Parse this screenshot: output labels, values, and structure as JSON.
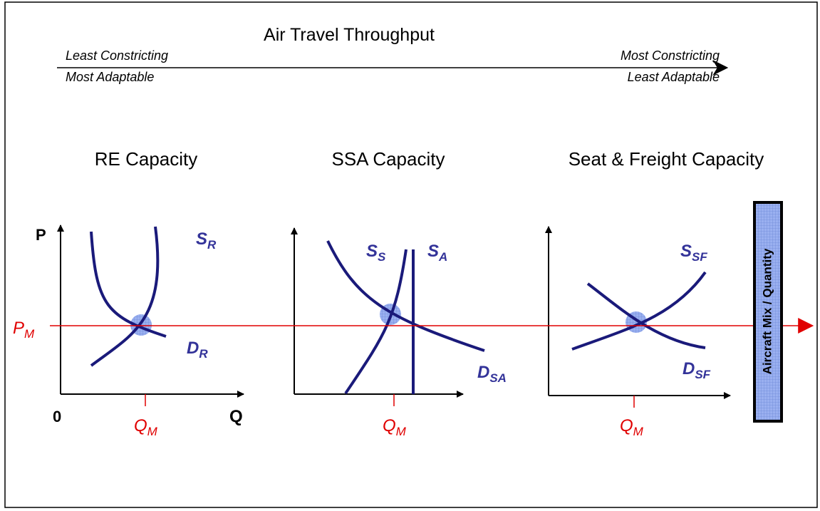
{
  "header": {
    "title": "Air Travel Throughput",
    "left_top": "Least Constricting",
    "left_bottom": "Most Adaptable",
    "right_top": "Most Constricting",
    "right_bottom": "Least Adaptable"
  },
  "price_label": {
    "main": "P",
    "sub": "M"
  },
  "panels": [
    {
      "title": "RE Capacity",
      "axis_p": "P",
      "axis_zero": "0",
      "axis_q": "Q",
      "supply": {
        "main": "S",
        "sub": "R"
      },
      "demand": {
        "main": "D",
        "sub": "R"
      },
      "quantity": {
        "main": "Q",
        "sub": "M"
      }
    },
    {
      "title": "SSA Capacity",
      "supply": {
        "main": "S",
        "sub": "S"
      },
      "supply_alt": {
        "main": "S",
        "sub": "A"
      },
      "demand": {
        "main": "D",
        "sub": "SA"
      },
      "quantity": {
        "main": "Q",
        "sub": "M"
      }
    },
    {
      "title": "Seat & Freight Capacity",
      "supply": {
        "main": "S",
        "sub": "SF"
      },
      "demand": {
        "main": "D",
        "sub": "SF"
      },
      "quantity": {
        "main": "Q",
        "sub": "M"
      }
    }
  ],
  "side_box": "Aircraft Mix / Quantity"
}
